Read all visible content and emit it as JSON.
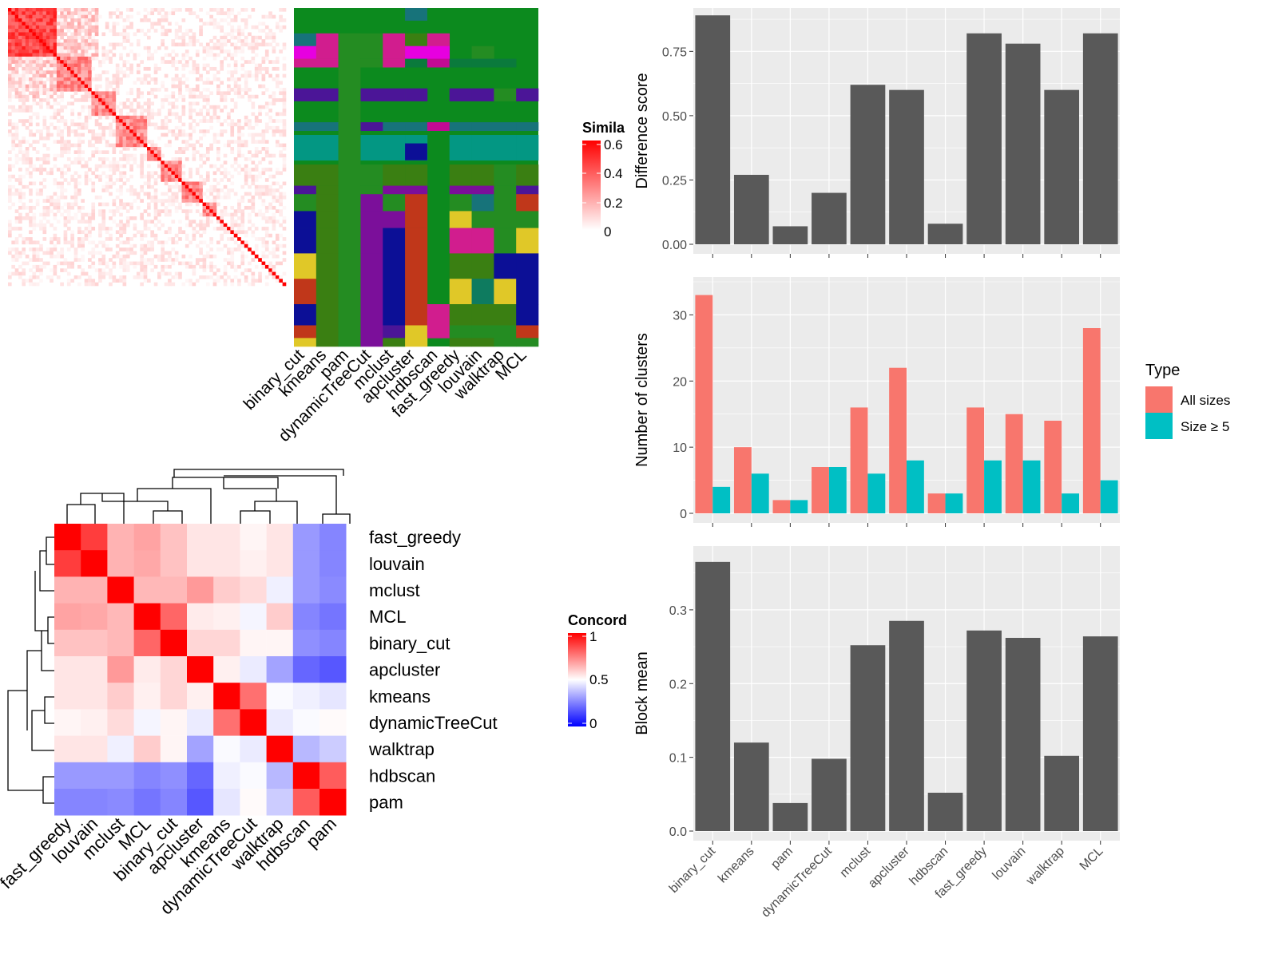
{
  "colors": {
    "panel_bg": "#EBEBEB",
    "grid": "#FFFFFF",
    "bar_dark": "#595959",
    "all_sizes": "#F8766D",
    "size_ge_5": "#00BFC4",
    "heat_high": "#FF0000",
    "heat_mid": "#FFFFFF",
    "heat_low": "#0000FF",
    "cluster_palette": [
      "#0C8A1E",
      "#248C22",
      "#3A7F12",
      "#0A7A3C",
      "#039783",
      "#17737A",
      "#4B1597",
      "#7B0F9A",
      "#C20A94",
      "#D11D8E",
      "#E700E0",
      "#0C0F96",
      "#C0371A",
      "#8E230D",
      "#E0C828",
      "#0E7B5F"
    ]
  },
  "top_left": {
    "methods": [
      "binary_cut",
      "kmeans",
      "pam",
      "dynamicTreeCut",
      "mclust",
      "apcluster",
      "hdbscan",
      "fast_greedy",
      "louvain",
      "walktrap",
      "MCL"
    ],
    "similarity_legend": {
      "title": "Simila",
      "ticks": [
        "0.6",
        "0.4",
        "0.2",
        "0"
      ]
    }
  },
  "bottom_left": {
    "methods": [
      "fast_greedy",
      "louvain",
      "mclust",
      "MCL",
      "binary_cut",
      "apcluster",
      "kmeans",
      "dynamicTreeCut",
      "walktrap",
      "hdbscan",
      "pam"
    ],
    "concordance_legend": {
      "title": "Concord",
      "ticks": [
        "1",
        "0.5",
        "0"
      ]
    },
    "matrix": [
      [
        1.0,
        0.88,
        0.65,
        0.68,
        0.62,
        0.55,
        0.55,
        0.52,
        0.55,
        0.3,
        0.26
      ],
      [
        0.88,
        1.0,
        0.65,
        0.67,
        0.62,
        0.55,
        0.55,
        0.53,
        0.55,
        0.3,
        0.26
      ],
      [
        0.65,
        0.65,
        1.0,
        0.64,
        0.64,
        0.7,
        0.6,
        0.57,
        0.47,
        0.3,
        0.27
      ],
      [
        0.68,
        0.67,
        0.64,
        1.0,
        0.8,
        0.54,
        0.53,
        0.48,
        0.6,
        0.26,
        0.23
      ],
      [
        0.62,
        0.62,
        0.64,
        0.8,
        1.0,
        0.58,
        0.58,
        0.52,
        0.52,
        0.28,
        0.26
      ],
      [
        0.55,
        0.55,
        0.7,
        0.54,
        0.58,
        1.0,
        0.53,
        0.46,
        0.32,
        0.2,
        0.17
      ],
      [
        0.55,
        0.55,
        0.6,
        0.53,
        0.58,
        0.53,
        1.0,
        0.78,
        0.49,
        0.47,
        0.45
      ],
      [
        0.52,
        0.53,
        0.57,
        0.48,
        0.52,
        0.46,
        0.78,
        1.0,
        0.46,
        0.49,
        0.51
      ],
      [
        0.55,
        0.55,
        0.47,
        0.6,
        0.52,
        0.32,
        0.49,
        0.46,
        1.0,
        0.36,
        0.4
      ],
      [
        0.3,
        0.3,
        0.3,
        0.26,
        0.28,
        0.2,
        0.47,
        0.49,
        0.36,
        1.0,
        0.82
      ],
      [
        0.26,
        0.26,
        0.27,
        0.23,
        0.26,
        0.17,
        0.45,
        0.51,
        0.4,
        0.82,
        1.0
      ]
    ]
  },
  "chart_data": [
    {
      "type": "bar",
      "categories": [
        "binary_cut",
        "kmeans",
        "pam",
        "dynamicTreeCut",
        "mclust",
        "apcluster",
        "hdbscan",
        "fast_greedy",
        "louvain",
        "walktrap",
        "MCL"
      ],
      "values": [
        0.89,
        0.27,
        0.07,
        0.2,
        0.62,
        0.6,
        0.08,
        0.82,
        0.78,
        0.6,
        0.82
      ],
      "ylabel": "Difference score",
      "ylim": [
        0,
        0.9
      ],
      "yticks": [
        "0.00",
        "0.25",
        "0.50",
        "0.75"
      ],
      "ytick_values": [
        0,
        0.25,
        0.5,
        0.75
      ],
      "grid": true
    },
    {
      "type": "bar",
      "categories": [
        "binary_cut",
        "kmeans",
        "pam",
        "dynamicTreeCut",
        "mclust",
        "apcluster",
        "hdbscan",
        "fast_greedy",
        "louvain",
        "walktrap",
        "MCL"
      ],
      "series": [
        {
          "name": "All sizes",
          "values": [
            33,
            10,
            2,
            7,
            16,
            22,
            3,
            16,
            15,
            14,
            28
          ]
        },
        {
          "name": "Size ≥ 5",
          "values": [
            4,
            6,
            2,
            7,
            6,
            8,
            3,
            8,
            8,
            3,
            5
          ]
        }
      ],
      "ylabel": "Number of clusters",
      "ylim": [
        0,
        35
      ],
      "yticks": [
        "0",
        "10",
        "20",
        "30"
      ],
      "ytick_values": [
        0,
        10,
        20,
        30
      ],
      "legend": {
        "title": "Type",
        "placement": "right"
      },
      "grid": true
    },
    {
      "type": "bar",
      "categories": [
        "binary_cut",
        "kmeans",
        "pam",
        "dynamicTreeCut",
        "mclust",
        "apcluster",
        "hdbscan",
        "fast_greedy",
        "louvain",
        "walktrap",
        "MCL"
      ],
      "values": [
        0.365,
        0.12,
        0.038,
        0.098,
        0.252,
        0.285,
        0.052,
        0.272,
        0.262,
        0.102,
        0.264
      ],
      "ylabel": "Block mean",
      "ylim": [
        0,
        0.38
      ],
      "yticks": [
        "0.0",
        "0.1",
        "0.2",
        "0.3"
      ],
      "ytick_values": [
        0,
        0.1,
        0.2,
        0.3
      ],
      "grid": true
    }
  ]
}
